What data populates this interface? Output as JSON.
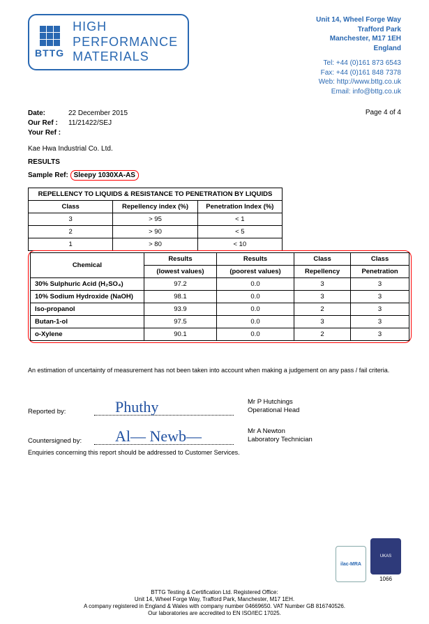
{
  "logo": {
    "acronym": "BTTG",
    "title_l1": "HIGH",
    "title_l2": "PERFORMANCE",
    "title_l3": "MATERIALS"
  },
  "address": {
    "l1": "Unit 14, Wheel Forge Way",
    "l2": "Trafford Park",
    "l3": "Manchester, M17 1EH",
    "l4": "England",
    "tel": "Tel: +44 (0)161 873 6543",
    "fax": "Fax: +44 (0)161 848 7378",
    "web": "Web: http://www.bttg.co.uk",
    "email": "Email: info@bttg.co.uk"
  },
  "meta": {
    "date_lbl": "Date:",
    "date": "22 December 2015",
    "ourref_lbl": "Our Ref :",
    "ourref": "11/21422/SEJ",
    "yourref_lbl": "Your Ref :",
    "page": "Page 4 of 4"
  },
  "company": "Kae Hwa Industrial Co. Ltd.",
  "results_title": "RESULTS",
  "sample_ref_lbl": "Sample Ref:",
  "sample_ref": "Sleepy 1030XA-AS",
  "t1": {
    "caption": "REPELLENCY TO LIQUIDS & RESISTANCE TO PENETRATION BY LIQUIDS",
    "h1": "Class",
    "h2": "Repellency index (%)",
    "h3": "Penetration Index (%)",
    "rows": [
      {
        "c": "3",
        "r": "> 95",
        "p": "< 1"
      },
      {
        "c": "2",
        "r": "> 90",
        "p": "< 5"
      },
      {
        "c": "1",
        "r": "> 80",
        "p": "< 10"
      }
    ]
  },
  "t2": {
    "h1": "Chemical",
    "h2a": "Results",
    "h2b": "(lowest values)",
    "h3a": "Results",
    "h3b": "(poorest values)",
    "h4a": "Class",
    "h4b": "Repellency",
    "h5a": "Class",
    "h5b": "Penetration",
    "rows": [
      {
        "c": "30% Sulphuric Acid (H₂SO₄)",
        "v1": "97.2",
        "v2": "0.0",
        "v3": "3",
        "v4": "3"
      },
      {
        "c": "10% Sodium Hydroxide (NaOH)",
        "v1": "98.1",
        "v2": "0.0",
        "v3": "3",
        "v4": "3"
      },
      {
        "c": "Iso-propanol",
        "v1": "93.9",
        "v2": "0.0",
        "v3": "2",
        "v4": "3"
      },
      {
        "c": "Butan-1-ol",
        "v1": "97.5",
        "v2": "0.0",
        "v3": "3",
        "v4": "3"
      },
      {
        "c": "o-Xylene",
        "v1": "90.1",
        "v2": "0.0",
        "v3": "2",
        "v4": "3"
      }
    ]
  },
  "note": "An estimation of uncertainty of measurement has not been taken into account when making a judgement on any pass / fail criteria.",
  "sig": {
    "rep_lbl": "Reported by:",
    "rep_name": "Mr P Hutchings",
    "rep_role": "Operational Head",
    "csg_lbl": "Countersigned by:",
    "csg_name": "Mr A Newton",
    "csg_role": "Laboratory Technician"
  },
  "enquiries": "Enquiries concerning this report should be addressed to Customer Services.",
  "footer": {
    "l1": "BTTG Testing & Certification Ltd. Registered Office:",
    "l2": "Unit 14, Wheel Forge Way, Trafford Park, Manchester, M17 1EH.",
    "l3": "A company registered in England & Wales with company number 04669650. VAT Number GB 816740526.",
    "l4": "Our laboratories are accredited to EN ISO/IEC 17025."
  },
  "accred": {
    "ilac": "ilac-MRA",
    "ukas": "UKAS",
    "ukas_num": "1066"
  }
}
